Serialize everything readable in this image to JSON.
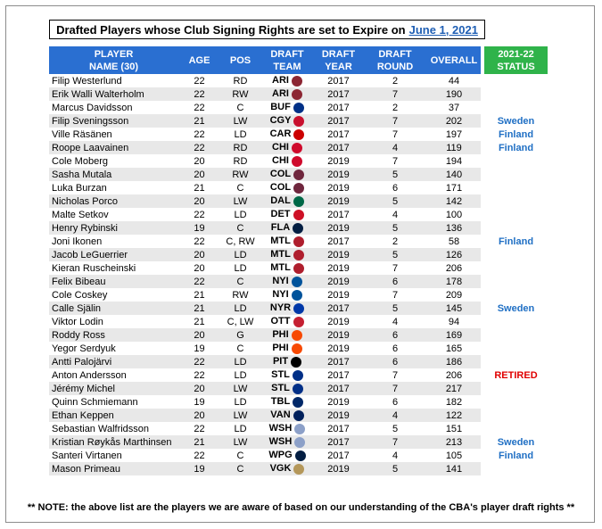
{
  "title": {
    "text": "Drafted Players whose Club Signing Rights are set to Expire on",
    "date": "June 1, 2021"
  },
  "headers": {
    "player_l1": "PLAYER",
    "player_l2": "NAME (30)",
    "age": "AGE",
    "pos": "POS",
    "team_l1": "DRAFT",
    "team_l2": "TEAM",
    "year_l1": "DRAFT",
    "year_l2": "YEAR",
    "round_l1": "DRAFT",
    "round_l2": "ROUND",
    "overall": "OVERALL",
    "status_l1": "2021-22",
    "status_l2": "STATUS"
  },
  "colors": {
    "header_blue": "#2a6fd1",
    "status_green": "#2fb34a",
    "status_blue": "#1f6fc4",
    "retired_red": "#e00000"
  },
  "rows": [
    {
      "name": "Filip Westerlund",
      "age": "22",
      "pos": "RD",
      "team": "ARI",
      "logo": "#8c2633",
      "year": "2017",
      "round": "2",
      "overall": "44",
      "status": ""
    },
    {
      "name": "Erik Walli Walterholm",
      "age": "22",
      "pos": "RW",
      "team": "ARI",
      "logo": "#8c2633",
      "year": "2017",
      "round": "7",
      "overall": "190",
      "status": ""
    },
    {
      "name": "Marcus Davidsson",
      "age": "22",
      "pos": "C",
      "team": "BUF",
      "logo": "#003087",
      "year": "2017",
      "round": "2",
      "overall": "37",
      "status": ""
    },
    {
      "name": "Filip Sveningsson",
      "age": "21",
      "pos": "LW",
      "team": "CGY",
      "logo": "#c8102e",
      "year": "2017",
      "round": "7",
      "overall": "202",
      "status": "Sweden"
    },
    {
      "name": "Ville Räsänen",
      "age": "22",
      "pos": "LD",
      "team": "CAR",
      "logo": "#cc0000",
      "year": "2017",
      "round": "7",
      "overall": "197",
      "status": "Finland"
    },
    {
      "name": "Roope Laavainen",
      "age": "22",
      "pos": "RD",
      "team": "CHI",
      "logo": "#cf0a2c",
      "year": "2017",
      "round": "4",
      "overall": "119",
      "status": "Finland"
    },
    {
      "name": "Cole Moberg",
      "age": "20",
      "pos": "RD",
      "team": "CHI",
      "logo": "#cf0a2c",
      "year": "2019",
      "round": "7",
      "overall": "194",
      "status": ""
    },
    {
      "name": "Sasha Mutala",
      "age": "20",
      "pos": "RW",
      "team": "COL",
      "logo": "#6f263d",
      "year": "2019",
      "round": "5",
      "overall": "140",
      "status": ""
    },
    {
      "name": "Luka Burzan",
      "age": "21",
      "pos": "C",
      "team": "COL",
      "logo": "#6f263d",
      "year": "2019",
      "round": "6",
      "overall": "171",
      "status": ""
    },
    {
      "name": "Nicholas Porco",
      "age": "20",
      "pos": "LW",
      "team": "DAL",
      "logo": "#006847",
      "year": "2019",
      "round": "5",
      "overall": "142",
      "status": ""
    },
    {
      "name": "Malte Setkov",
      "age": "22",
      "pos": "LD",
      "team": "DET",
      "logo": "#ce1126",
      "year": "2017",
      "round": "4",
      "overall": "100",
      "status": ""
    },
    {
      "name": "Henry Rybinski",
      "age": "19",
      "pos": "C",
      "team": "FLA",
      "logo": "#041e42",
      "year": "2019",
      "round": "5",
      "overall": "136",
      "status": ""
    },
    {
      "name": "Joni Ikonen",
      "age": "22",
      "pos": "C, RW",
      "team": "MTL",
      "logo": "#af1e2d",
      "year": "2017",
      "round": "2",
      "overall": "58",
      "status": "Finland"
    },
    {
      "name": "Jacob LeGuerrier",
      "age": "20",
      "pos": "LD",
      "team": "MTL",
      "logo": "#af1e2d",
      "year": "2019",
      "round": "5",
      "overall": "126",
      "status": ""
    },
    {
      "name": "Kieran Ruscheinski",
      "age": "20",
      "pos": "LD",
      "team": "MTL",
      "logo": "#af1e2d",
      "year": "2019",
      "round": "7",
      "overall": "206",
      "status": ""
    },
    {
      "name": "Felix Bibeau",
      "age": "22",
      "pos": "C",
      "team": "NYI",
      "logo": "#00539b",
      "year": "2019",
      "round": "6",
      "overall": "178",
      "status": ""
    },
    {
      "name": "Cole Coskey",
      "age": "21",
      "pos": "RW",
      "team": "NYI",
      "logo": "#00539b",
      "year": "2019",
      "round": "7",
      "overall": "209",
      "status": ""
    },
    {
      "name": "Calle Själin",
      "age": "21",
      "pos": "LD",
      "team": "NYR",
      "logo": "#0038a8",
      "year": "2017",
      "round": "5",
      "overall": "145",
      "status": "Sweden"
    },
    {
      "name": "Viktor Lodin",
      "age": "21",
      "pos": "C, LW",
      "team": "OTT",
      "logo": "#c52032",
      "year": "2019",
      "round": "4",
      "overall": "94",
      "status": ""
    },
    {
      "name": "Roddy Ross",
      "age": "20",
      "pos": "G",
      "team": "PHI",
      "logo": "#f74902",
      "year": "2019",
      "round": "6",
      "overall": "169",
      "status": ""
    },
    {
      "name": "Yegor Serdyuk",
      "age": "19",
      "pos": "C",
      "team": "PHI",
      "logo": "#f74902",
      "year": "2019",
      "round": "6",
      "overall": "165",
      "status": ""
    },
    {
      "name": "Antti Palojärvi",
      "age": "22",
      "pos": "LD",
      "team": "PIT",
      "logo": "#000000",
      "year": "2017",
      "round": "6",
      "overall": "186",
      "status": ""
    },
    {
      "name": "Anton Andersson",
      "age": "22",
      "pos": "LD",
      "team": "STL",
      "logo": "#002f87",
      "year": "2017",
      "round": "7",
      "overall": "206",
      "status": "RETIRED"
    },
    {
      "name": "Jérémy Michel",
      "age": "20",
      "pos": "LW",
      "team": "STL",
      "logo": "#002f87",
      "year": "2017",
      "round": "7",
      "overall": "217",
      "status": ""
    },
    {
      "name": "Quinn Schmiemann",
      "age": "19",
      "pos": "LD",
      "team": "TBL",
      "logo": "#002868",
      "year": "2019",
      "round": "6",
      "overall": "182",
      "status": ""
    },
    {
      "name": "Ethan Keppen",
      "age": "20",
      "pos": "LW",
      "team": "VAN",
      "logo": "#00205b",
      "year": "2019",
      "round": "4",
      "overall": "122",
      "status": ""
    },
    {
      "name": "Sebastian Walfridsson",
      "age": "22",
      "pos": "LD",
      "team": "WSH",
      "logo": "#8ca0c8",
      "year": "2017",
      "round": "5",
      "overall": "151",
      "status": ""
    },
    {
      "name": "Kristian Røykås Marthinsen",
      "age": "21",
      "pos": "LW",
      "team": "WSH",
      "logo": "#8ca0c8",
      "year": "2017",
      "round": "7",
      "overall": "213",
      "status": "Sweden"
    },
    {
      "name": "Santeri Virtanen",
      "age": "22",
      "pos": "C",
      "team": "WPG",
      "logo": "#041e42",
      "year": "2017",
      "round": "4",
      "overall": "105",
      "status": "Finland"
    },
    {
      "name": "Mason Primeau",
      "age": "19",
      "pos": "C",
      "team": "VGK",
      "logo": "#b4975a",
      "year": "2019",
      "round": "5",
      "overall": "141",
      "status": ""
    }
  ],
  "note": "** NOTE: the above list are the players we are aware of based on our understanding of the CBA's player draft rights **"
}
